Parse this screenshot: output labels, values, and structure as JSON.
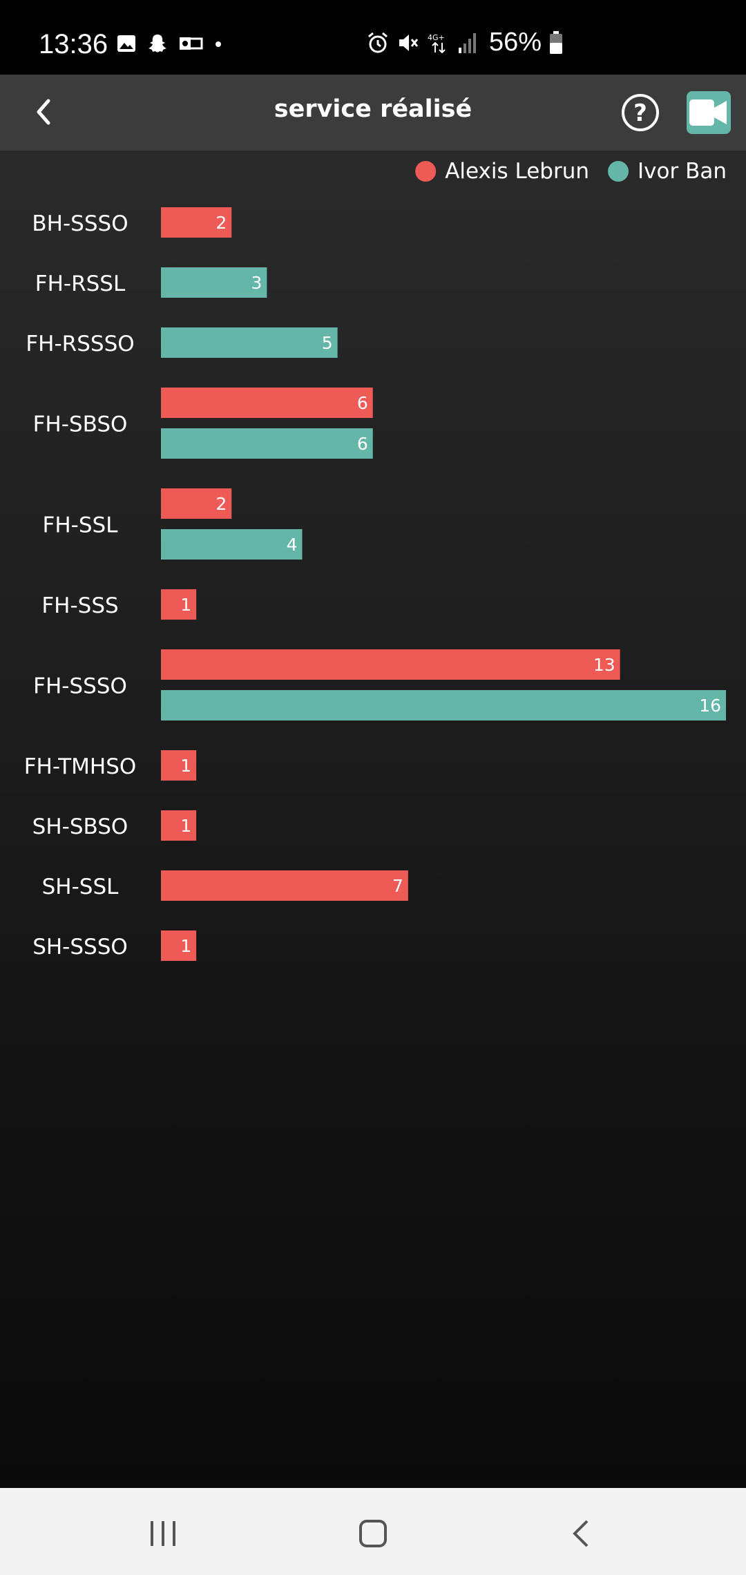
{
  "status_bar": {
    "time": "13:36",
    "battery": "56%",
    "network": "4G+"
  },
  "app_bar": {
    "title": "service réalisé"
  },
  "colors": {
    "series_a": "#ee5a55",
    "series_b": "#64b6a9"
  },
  "chart_data": {
    "type": "bar",
    "orientation": "horizontal",
    "legend_position": "top-right",
    "categories": [
      "BH-SSSO",
      "FH-RSSL",
      "FH-RSSSO",
      "FH-SBSO",
      "FH-SSL",
      "FH-SSS",
      "FH-SSSO",
      "FH-TMHSO",
      "SH-SBSO",
      "SH-SSL",
      "SH-SSSO"
    ],
    "series": [
      {
        "name": "Alexis Lebrun",
        "color": "#ee5a55",
        "values": [
          2,
          null,
          null,
          6,
          2,
          1,
          13,
          1,
          1,
          7,
          1
        ]
      },
      {
        "name": "Ivor Ban",
        "color": "#64b6a9",
        "values": [
          null,
          3,
          5,
          6,
          4,
          null,
          16,
          null,
          null,
          null,
          null
        ]
      }
    ],
    "xlim": [
      0,
      16
    ]
  }
}
